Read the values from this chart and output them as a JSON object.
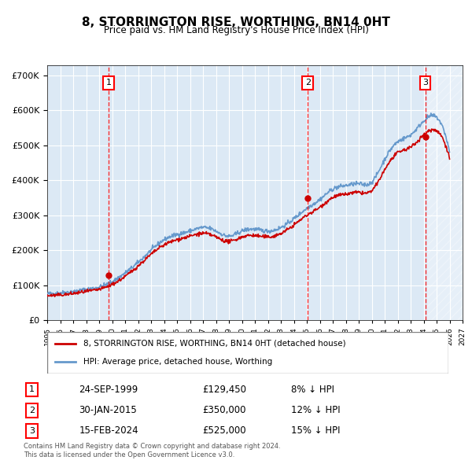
{
  "title": "8, STORRINGTON RISE, WORTHING, BN14 0HT",
  "subtitle": "Price paid vs. HM Land Registry's House Price Index (HPI)",
  "ylabel": "",
  "background_color": "#ffffff",
  "plot_bg_color": "#dce9f5",
  "grid_color": "#ffffff",
  "hpi_color": "#6699cc",
  "price_color": "#cc0000",
  "hatch_color": "#c8d8eb",
  "ylim": [
    0,
    730000
  ],
  "yticks": [
    0,
    100000,
    200000,
    300000,
    400000,
    500000,
    600000,
    700000
  ],
  "ytick_labels": [
    "£0",
    "£100K",
    "£200K",
    "£300K",
    "£400K",
    "£500K",
    "£600K",
    "£700K"
  ],
  "xstart": 1995,
  "xend": 2027,
  "sale_dates": [
    "1999-09-24",
    "2015-01-30",
    "2024-02-15"
  ],
  "sale_prices": [
    129450,
    350000,
    525000
  ],
  "sale_labels": [
    "1",
    "2",
    "3"
  ],
  "legend_label_price": "8, STORRINGTON RISE, WORTHING, BN14 0HT (detached house)",
  "legend_label_hpi": "HPI: Average price, detached house, Worthing",
  "table_entries": [
    {
      "num": "1",
      "date": "24-SEP-1999",
      "price": "£129,450",
      "hpi": "8% ↓ HPI"
    },
    {
      "num": "2",
      "date": "30-JAN-2015",
      "price": "£350,000",
      "hpi": "12% ↓ HPI"
    },
    {
      "num": "3",
      "date": "15-FEB-2024",
      "price": "£525,000",
      "hpi": "15% ↓ HPI"
    }
  ],
  "footer": "Contains HM Land Registry data © Crown copyright and database right 2024.\nThis data is licensed under the Open Government Licence v3.0.",
  "hpi_data_years": [
    1995,
    1996,
    1997,
    1998,
    1999,
    2000,
    2001,
    2002,
    2003,
    2004,
    2005,
    2006,
    2007,
    2008,
    2009,
    2010,
    2011,
    2012,
    2013,
    2014,
    2015,
    2016,
    2017,
    2018,
    2019,
    2020,
    2021,
    2022,
    2023,
    2024,
    2025
  ],
  "hpi_data_values": [
    75000,
    78000,
    82000,
    88000,
    95000,
    110000,
    135000,
    165000,
    200000,
    230000,
    245000,
    255000,
    265000,
    255000,
    240000,
    255000,
    260000,
    255000,
    265000,
    290000,
    320000,
    345000,
    375000,
    385000,
    390000,
    395000,
    460000,
    510000,
    530000,
    570000,
    580000
  ],
  "price_data_years": [
    1995,
    1996,
    1997,
    1998,
    1999,
    2000,
    2001,
    2002,
    2003,
    2004,
    2005,
    2006,
    2007,
    2008,
    2009,
    2010,
    2011,
    2012,
    2013,
    2014,
    2015,
    2016,
    2017,
    2018,
    2019,
    2020,
    2021,
    2022,
    2023,
    2024,
    2025
  ],
  "price_data_values": [
    70000,
    72000,
    76000,
    82000,
    88000,
    102000,
    125000,
    155000,
    188000,
    215000,
    230000,
    240000,
    248000,
    238000,
    225000,
    238000,
    242000,
    238000,
    248000,
    272000,
    300000,
    323000,
    351000,
    360000,
    365000,
    370000,
    430000,
    478000,
    495000,
    530000,
    542000
  ]
}
